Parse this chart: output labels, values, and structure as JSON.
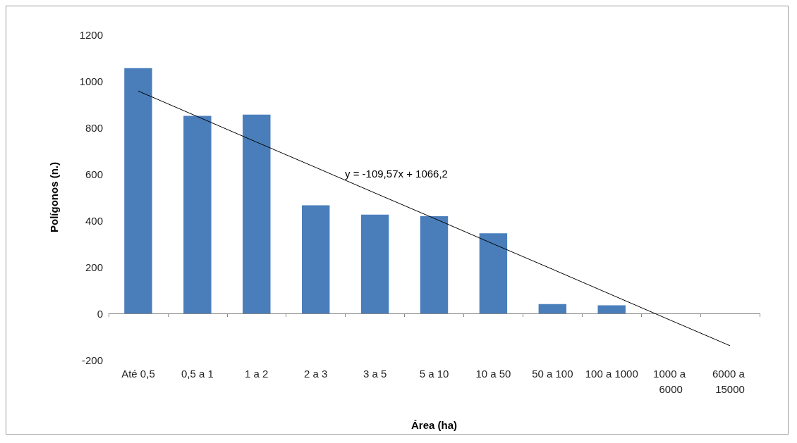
{
  "chart_data": {
    "type": "bar",
    "xlabel": "Área (ha)",
    "ylabel": "Polígonos (n.)",
    "categories": [
      "Até 0,5",
      "0,5 a 1",
      "1 a 2",
      "2 a 3",
      "3 a 5",
      "5 a 10",
      "10 a 50",
      "50 a 100",
      "100 a 1000",
      "1000 a 6000",
      "6000 a 15000"
    ],
    "series": [
      {
        "color": "#4a7ebb",
        "values": [
          1055,
          850,
          855,
          465,
          425,
          418,
          345,
          40,
          35,
          0,
          0
        ]
      },
      {
        "type": "line",
        "color": "#000000",
        "values": [
          957,
          847,
          737,
          628,
          518,
          409,
          299,
          190,
          80,
          -30,
          -139
        ]
      }
    ],
    "annotations": [
      "y = -109,57x + 1066,2"
    ],
    "ylim": [
      -200,
      1200
    ],
    "yticks": [
      -200,
      0,
      200,
      400,
      600,
      800,
      1000,
      1200
    ],
    "marker": "none",
    "line_style": "solid"
  }
}
